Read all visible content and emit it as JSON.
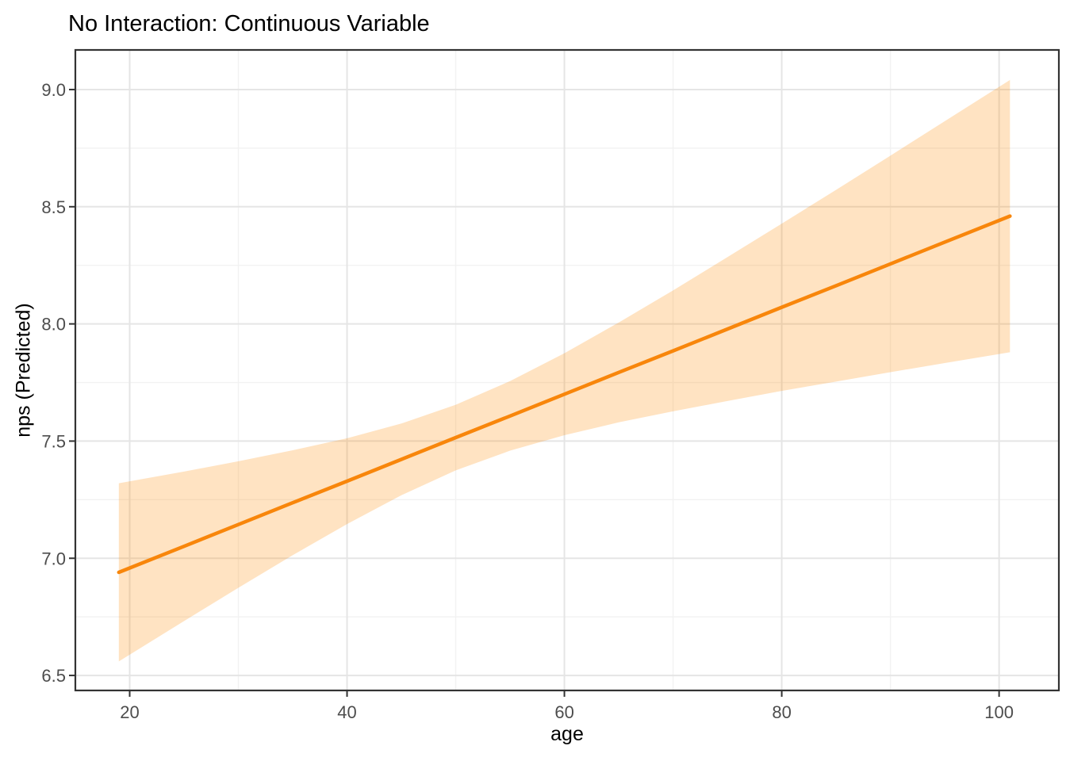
{
  "chart_data": {
    "type": "line",
    "title": "No Interaction: Continuous Variable",
    "xlabel": "age",
    "ylabel": "nps (Predicted)",
    "legend": false,
    "grid": true,
    "background": "#FFFFFF",
    "xlim": [
      15.0,
      105.5
    ],
    "ylim": [
      6.436,
      9.169
    ],
    "x_ticks": {
      "values": [
        20,
        40,
        60,
        80,
        100
      ],
      "labels": [
        "20",
        "40",
        "60",
        "80",
        "100"
      ]
    },
    "x_minor_ticks": [
      30,
      50,
      70,
      90
    ],
    "y_ticks": {
      "values": [
        6.5,
        7.0,
        7.5,
        8.0,
        8.5,
        9.0
      ],
      "labels": [
        "6.5",
        "7.0",
        "7.5",
        "8.0",
        "8.5",
        "9.0"
      ]
    },
    "y_minor_ticks": [
      6.75,
      7.25,
      7.75,
      8.25,
      8.75
    ],
    "series": [
      {
        "name": "linear fit of nps on age with confidence band",
        "line_color": "#F8860B",
        "band_color": "rgba(255,140,0,0.24)",
        "x": [
          19,
          25,
          30,
          35,
          40,
          45,
          50,
          55,
          60,
          65,
          70,
          75,
          80,
          85,
          90,
          95,
          101
        ],
        "fit": [
          6.94,
          7.051,
          7.144,
          7.237,
          7.329,
          7.422,
          7.515,
          7.607,
          7.7,
          7.793,
          7.885,
          7.978,
          8.071,
          8.163,
          8.256,
          8.349,
          8.46
        ],
        "lower": [
          6.56,
          6.732,
          6.874,
          7.013,
          7.146,
          7.269,
          7.375,
          7.459,
          7.525,
          7.58,
          7.627,
          7.671,
          7.714,
          7.754,
          7.794,
          7.833,
          7.879
        ],
        "upper": [
          7.32,
          7.37,
          7.414,
          7.461,
          7.512,
          7.575,
          7.655,
          7.756,
          7.875,
          8.006,
          8.143,
          8.285,
          8.428,
          8.572,
          8.718,
          8.865,
          9.041
        ]
      }
    ]
  }
}
